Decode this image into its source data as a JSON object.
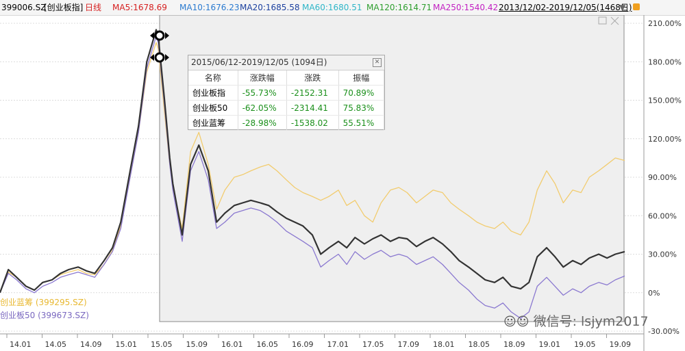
{
  "header": {
    "symbol": "399006.SZ",
    "name": "[创业板指]",
    "period": "日线",
    "ma5": "MA5:1678.69",
    "ma10": "MA10:1676.23",
    "ma20": "MA20:1685.58",
    "ma60": "MA60:1680.51",
    "ma120": "MA120:1614.71",
    "ma250": "MA250:1540.42",
    "date_range": "2013/12/02-2019/12/05(1468日)"
  },
  "colors": {
    "ma5": "#d62020",
    "ma10": "#2a7ad0",
    "ma20": "#1a3f9e",
    "ma60": "#2fb6c8",
    "ma120": "#2e9e2e",
    "ma250": "#c21fc2",
    "chinext": "#333333",
    "chinext50": "#8a78d0",
    "chinext_bluechip": "#f2cc6e"
  },
  "popup": {
    "title": "2015/06/12-2019/12/05 (1094日)",
    "headers": [
      "名称",
      "涨跌幅",
      "涨跌",
      "振幅"
    ],
    "rows": [
      [
        "创业板指",
        "-55.73%",
        "-2152.31",
        "70.89%"
      ],
      [
        "创业板50",
        "-62.05%",
        "-2314.41",
        "75.83%"
      ],
      [
        "创业蓝筹",
        "-28.98%",
        "-1538.02",
        "55.51%"
      ]
    ]
  },
  "legend": {
    "bluechip": "创业蓝筹 (399295.SZ)",
    "chinext50": "创业板50 (399673.SZ)"
  },
  "watermark": "微信号: lsjym2017",
  "chart_data": {
    "type": "line",
    "ylim": [
      -30,
      210
    ],
    "y_ticks": [
      "210.00%",
      "180.00%",
      "150.00%",
      "120.00%",
      "90.00%",
      "60.00%",
      "30.00%",
      "0%",
      "-30.00%"
    ],
    "x_ticks": [
      "14.01",
      "14.05",
      "14.09",
      "15.01",
      "15.05",
      "15.09",
      "16.01",
      "16.05",
      "16.09",
      "17.01",
      "17.05",
      "17.09",
      "18.01",
      "18.05",
      "18.09",
      "19.01",
      "19.05",
      "19.09"
    ],
    "x": [
      2013.92,
      2014.0,
      2014.08,
      2014.17,
      2014.25,
      2014.33,
      2014.42,
      2014.5,
      2014.58,
      2014.67,
      2014.75,
      2014.83,
      2014.92,
      2015.0,
      2015.08,
      2015.17,
      2015.25,
      2015.33,
      2015.42,
      2015.44,
      2015.5,
      2015.55,
      2015.58,
      2015.67,
      2015.75,
      2015.83,
      2015.92,
      2016.0,
      2016.08,
      2016.17,
      2016.25,
      2016.33,
      2016.42,
      2016.5,
      2016.58,
      2016.67,
      2016.75,
      2016.83,
      2016.92,
      2017.0,
      2017.08,
      2017.17,
      2017.25,
      2017.33,
      2017.42,
      2017.5,
      2017.58,
      2017.67,
      2017.75,
      2017.83,
      2017.92,
      2018.0,
      2018.08,
      2018.17,
      2018.25,
      2018.33,
      2018.42,
      2018.5,
      2018.58,
      2018.67,
      2018.75,
      2018.83,
      2018.92,
      2019.0,
      2019.08,
      2019.17,
      2019.25,
      2019.33,
      2019.42,
      2019.5,
      2019.58,
      2019.67,
      2019.75,
      2019.83,
      2019.92
    ],
    "series": [
      {
        "name": "创业板指",
        "color": "#333333",
        "values": [
          0,
          18,
          12,
          5,
          2,
          8,
          10,
          15,
          18,
          20,
          17,
          15,
          25,
          35,
          55,
          95,
          130,
          180,
          205,
          200,
          150,
          105,
          85,
          45,
          100,
          115,
          95,
          55,
          62,
          68,
          70,
          72,
          70,
          68,
          63,
          58,
          55,
          52,
          45,
          30,
          35,
          40,
          35,
          43,
          38,
          42,
          45,
          40,
          43,
          42,
          36,
          40,
          43,
          38,
          32,
          25,
          20,
          15,
          10,
          8,
          12,
          5,
          3,
          8,
          28,
          35,
          28,
          20,
          25,
          22,
          27,
          30,
          27,
          30,
          32
        ]
      },
      {
        "name": "创业板50",
        "color": "#8a78d0",
        "values": [
          0,
          15,
          10,
          3,
          0,
          5,
          8,
          12,
          14,
          16,
          14,
          12,
          22,
          32,
          50,
          90,
          125,
          175,
          200,
          195,
          145,
          100,
          80,
          40,
          95,
          110,
          88,
          50,
          55,
          62,
          64,
          66,
          64,
          60,
          55,
          48,
          44,
          40,
          35,
          20,
          25,
          30,
          22,
          32,
          26,
          30,
          33,
          28,
          30,
          28,
          22,
          25,
          28,
          22,
          15,
          8,
          2,
          -5,
          -10,
          -12,
          -8,
          -15,
          -20,
          -15,
          5,
          12,
          5,
          -2,
          3,
          0,
          5,
          8,
          6,
          10,
          13
        ]
      },
      {
        "name": "创业蓝筹",
        "color": "#f2cc6e",
        "values": [
          0,
          16,
          12,
          5,
          2,
          8,
          10,
          14,
          16,
          18,
          15,
          14,
          22,
          33,
          52,
          90,
          125,
          172,
          195,
          190,
          140,
          100,
          82,
          50,
          110,
          125,
          100,
          65,
          80,
          90,
          92,
          95,
          98,
          100,
          95,
          88,
          82,
          78,
          75,
          72,
          75,
          80,
          68,
          72,
          60,
          55,
          70,
          80,
          82,
          78,
          70,
          75,
          80,
          78,
          70,
          65,
          60,
          55,
          52,
          50,
          55,
          48,
          45,
          55,
          80,
          95,
          85,
          70,
          80,
          78,
          90,
          95,
          100,
          105,
          103
        ]
      }
    ]
  }
}
